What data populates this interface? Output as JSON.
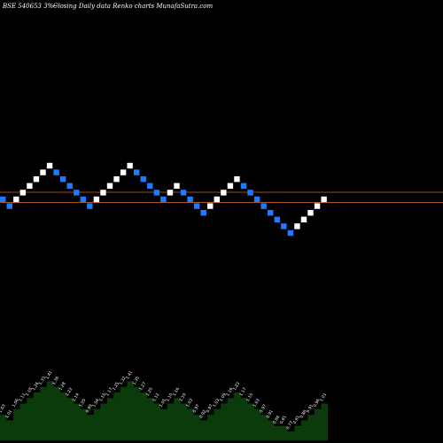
{
  "header": {
    "symbol_text": "BSE 540653 3%~",
    "caption": "Closing Daily data  Renko  charts MunafaSutra.com"
  },
  "colors": {
    "background": "#000000",
    "up_brick": "#ffffff",
    "down_brick": "#1e7bff",
    "reference_line": "#c0642a",
    "volume_fill": "#0b3a0b",
    "label_text": "#ffffff"
  },
  "chart_data": {
    "type": "renko",
    "brick_size": 1,
    "reference_levels": [
      1.05,
      -0.45
    ],
    "bricks": [
      {
        "dir": "down",
        "value": 0
      },
      {
        "dir": "down",
        "value": -1
      },
      {
        "dir": "up",
        "value": 0
      },
      {
        "dir": "up",
        "value": 1
      },
      {
        "dir": "up",
        "value": 2
      },
      {
        "dir": "up",
        "value": 3
      },
      {
        "dir": "up",
        "value": 4
      },
      {
        "dir": "up",
        "value": 5
      },
      {
        "dir": "down",
        "value": 4
      },
      {
        "dir": "down",
        "value": 3
      },
      {
        "dir": "down",
        "value": 2
      },
      {
        "dir": "down",
        "value": 1
      },
      {
        "dir": "down",
        "value": 0
      },
      {
        "dir": "down",
        "value": -1
      },
      {
        "dir": "up",
        "value": 0
      },
      {
        "dir": "up",
        "value": 1
      },
      {
        "dir": "up",
        "value": 2
      },
      {
        "dir": "up",
        "value": 3
      },
      {
        "dir": "up",
        "value": 4
      },
      {
        "dir": "up",
        "value": 5
      },
      {
        "dir": "down",
        "value": 4
      },
      {
        "dir": "down",
        "value": 3
      },
      {
        "dir": "down",
        "value": 2
      },
      {
        "dir": "down",
        "value": 1
      },
      {
        "dir": "down",
        "value": 0
      },
      {
        "dir": "up",
        "value": 1
      },
      {
        "dir": "up",
        "value": 2
      },
      {
        "dir": "down",
        "value": 1
      },
      {
        "dir": "down",
        "value": 0
      },
      {
        "dir": "down",
        "value": -1
      },
      {
        "dir": "down",
        "value": -2
      },
      {
        "dir": "up",
        "value": -1
      },
      {
        "dir": "up",
        "value": 0
      },
      {
        "dir": "up",
        "value": 1
      },
      {
        "dir": "up",
        "value": 2
      },
      {
        "dir": "up",
        "value": 3
      },
      {
        "dir": "down",
        "value": 2
      },
      {
        "dir": "down",
        "value": 1
      },
      {
        "dir": "down",
        "value": 0
      },
      {
        "dir": "down",
        "value": -1
      },
      {
        "dir": "down",
        "value": -2
      },
      {
        "dir": "down",
        "value": -3
      },
      {
        "dir": "down",
        "value": -4
      },
      {
        "dir": "down",
        "value": -5
      },
      {
        "dir": "up",
        "value": -4
      },
      {
        "dir": "up",
        "value": -3
      },
      {
        "dir": "up",
        "value": -2
      },
      {
        "dir": "up",
        "value": -1
      },
      {
        "dir": "up",
        "value": 0
      }
    ],
    "volume": [
      3,
      2,
      4,
      5,
      6,
      7,
      8,
      9,
      8,
      7,
      6,
      5,
      4,
      3,
      4,
      5,
      6,
      7,
      8,
      9,
      8,
      7,
      6,
      5,
      4,
      5,
      6,
      5,
      4,
      3,
      2,
      3,
      4,
      5,
      6,
      7,
      6,
      5,
      4,
      3,
      2,
      1,
      1,
      0,
      1,
      2,
      3,
      4,
      5
    ],
    "brick_labels": [
      "1.03",
      "1.01",
      "1.06",
      "1.11",
      "1.18",
      "1.26",
      "1.33",
      "1.41",
      "1.36",
      "1.28",
      "1.22",
      "1.14",
      "1.05",
      "0.99",
      "1.04",
      "1.10",
      "1.17",
      "1.25",
      "1.32",
      "1.41",
      "1.35",
      "1.27",
      "1.20",
      "1.12",
      "1.05",
      "1.10",
      "1.16",
      "1.10",
      "1.03",
      "0.97",
      "0.92",
      "0.97",
      "1.03",
      "1.09",
      "1.16",
      "1.23",
      "1.17",
      "1.10",
      "1.03",
      "0.97",
      "0.91",
      "0.86",
      "0.81",
      "0.77",
      "0.81",
      "0.86",
      "0.91",
      "0.96",
      "1.01"
    ]
  }
}
